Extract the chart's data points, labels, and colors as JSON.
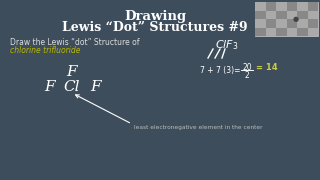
{
  "bg_color": "#3d4d5c",
  "title_line1": "Drawing",
  "title_line2": "Lewis “Dot” Structures #9",
  "subtitle": "Draw the Lewis “dot” Structure of",
  "subtitle2": "chlorine trifluoride",
  "subtitle2_color": "#b8b800",
  "subtitle_color": "#dddddd",
  "title_color": "#ffffff",
  "mol_F_top": "F",
  "mol_F_left": "F",
  "mol_Cl": "Cl",
  "mol_F_right": "F",
  "annotation": "least electronegative element in the center",
  "annotation_color": "#bbbbbb",
  "thumb_color": "#888888",
  "eq_color": "#ffffff",
  "result_color": "#cccc44"
}
